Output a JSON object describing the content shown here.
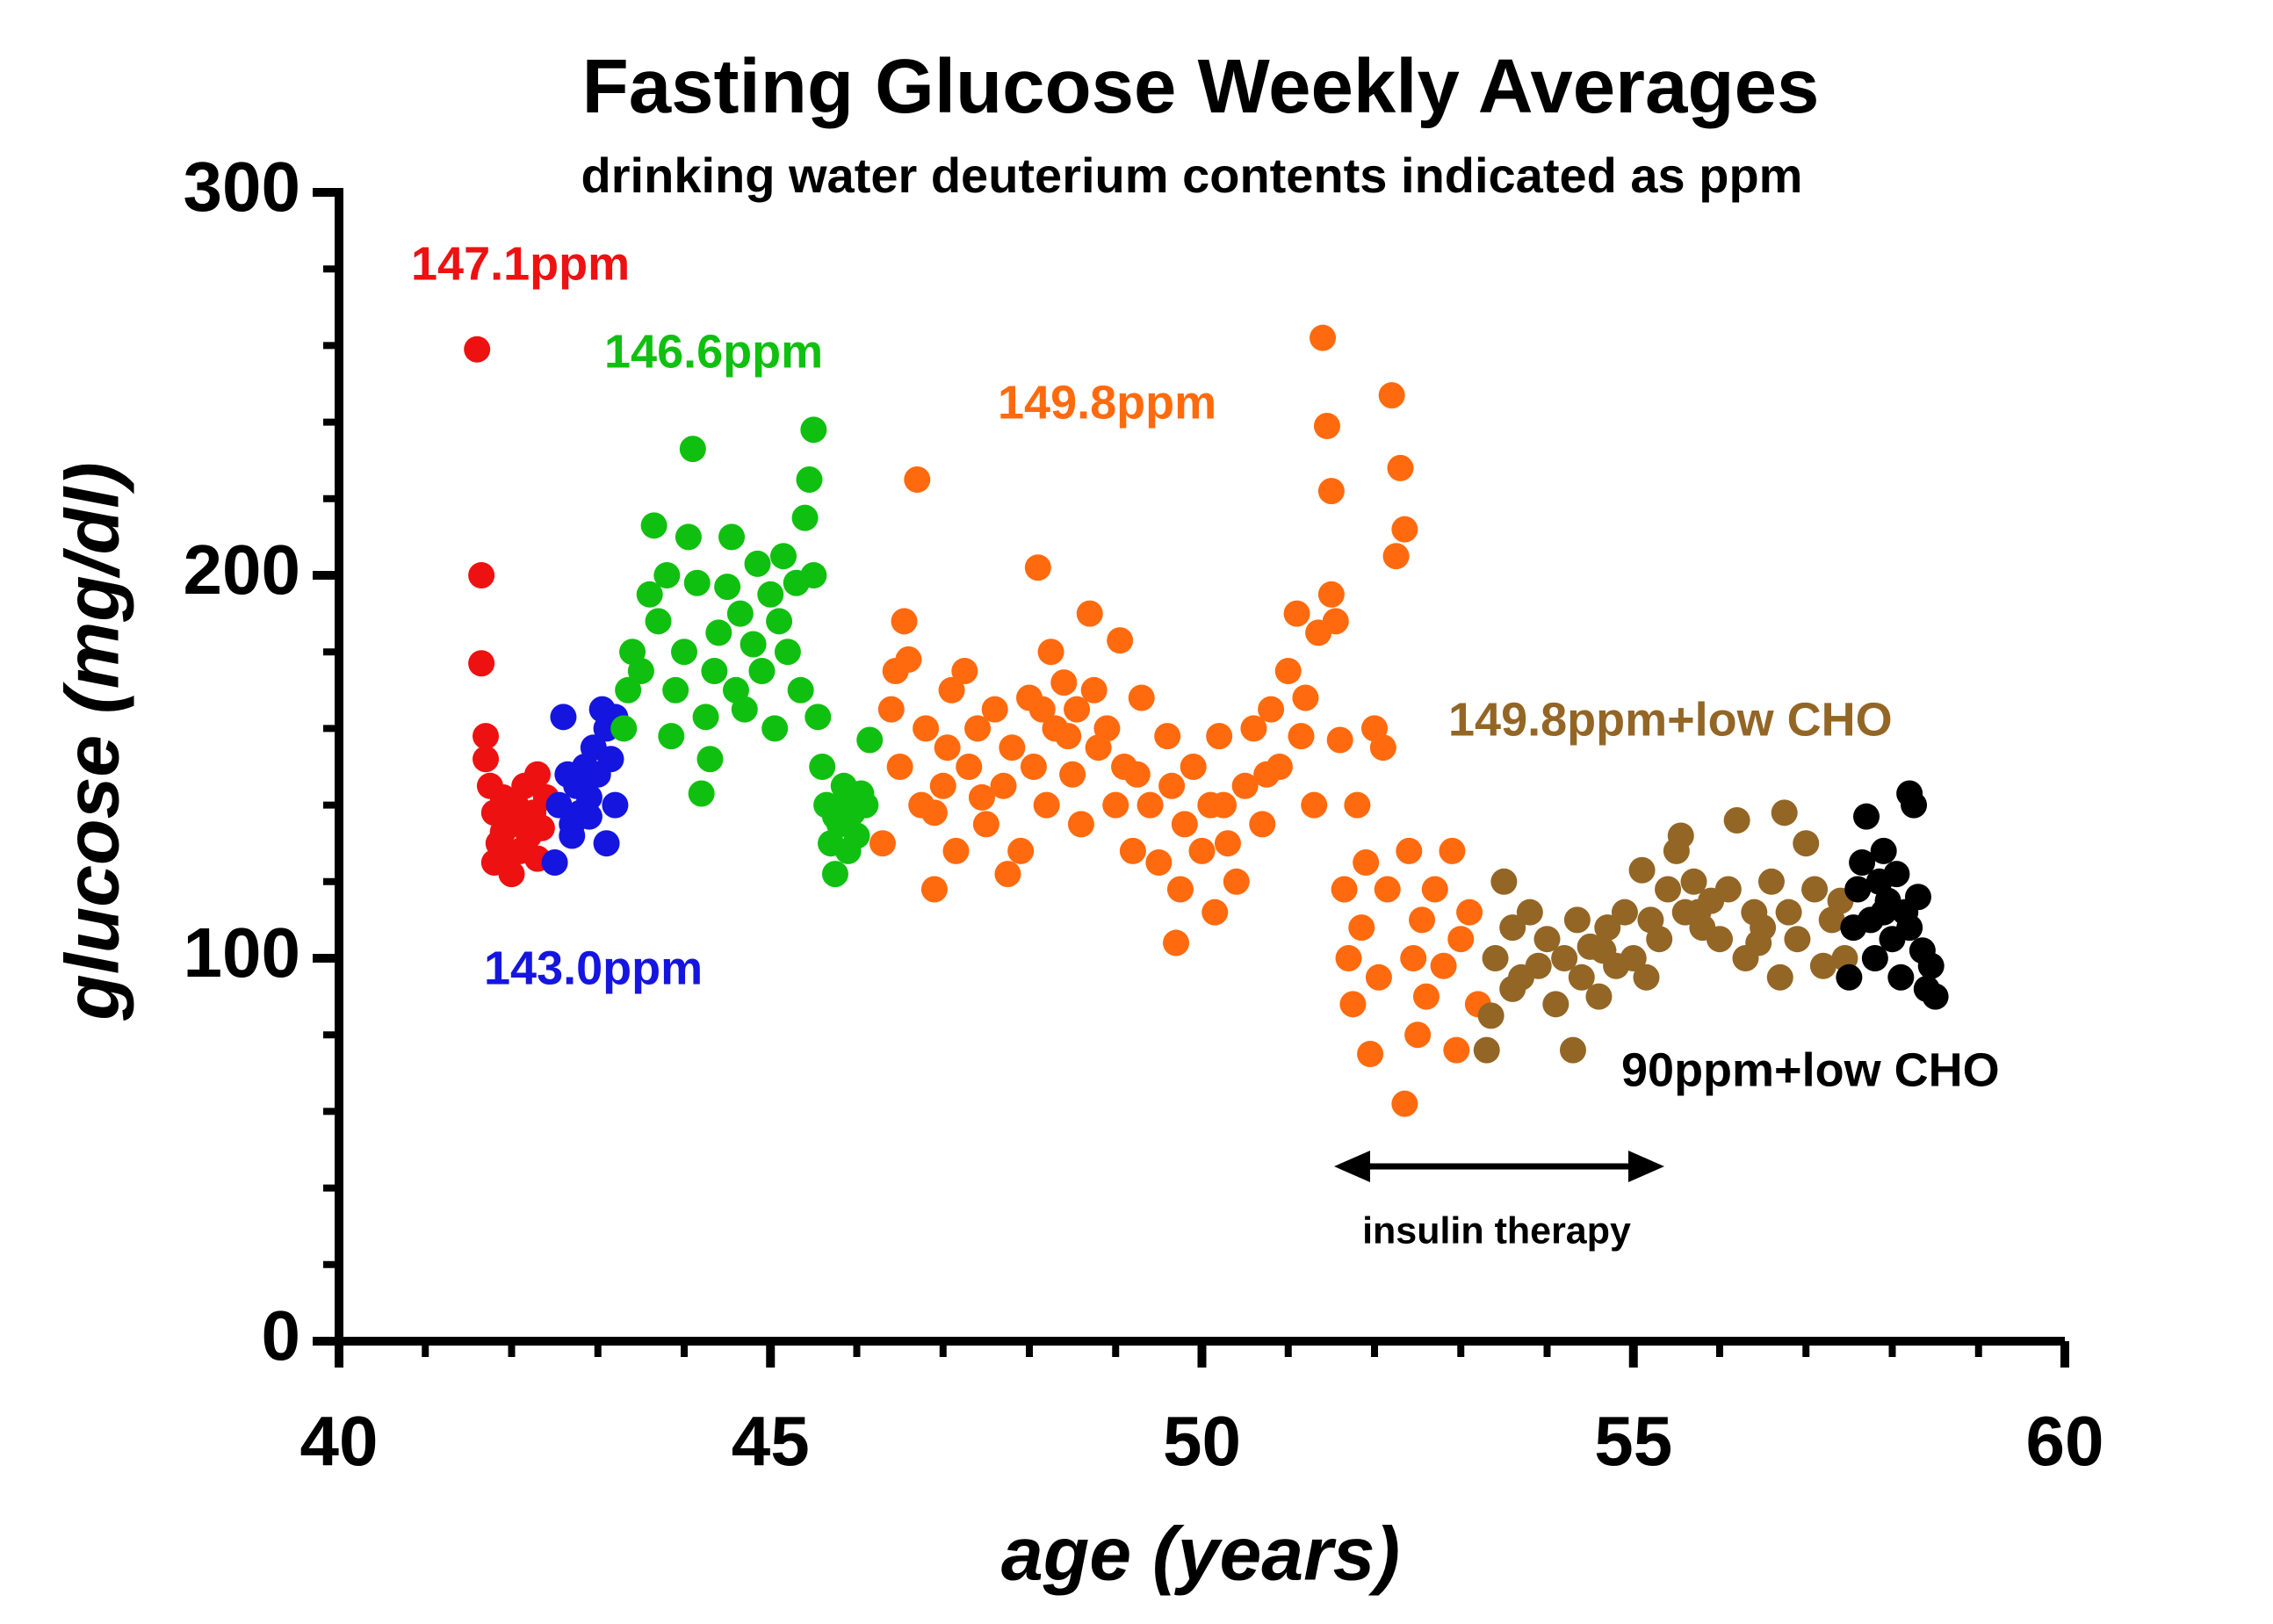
{
  "chart_data": {
    "type": "scatter",
    "title": "Fasting Glucose Weekly Averages",
    "subtitle": "drinking water deuterium contents indicated as ppm",
    "xlabel": "age (years)",
    "ylabel": "glucose (mg/dl)",
    "xlim": [
      40,
      60
    ],
    "ylim": [
      0,
      300
    ],
    "xticks": [
      40,
      45,
      50,
      55,
      60
    ],
    "yticks": [
      0,
      100,
      200,
      300
    ],
    "xminor_ticks": [
      41,
      42,
      43,
      44,
      46,
      47,
      48,
      49,
      51,
      52,
      53,
      54,
      56,
      57,
      58,
      59
    ],
    "yminor_ticks": [
      20,
      40,
      60,
      80,
      120,
      140,
      160,
      180,
      220,
      240,
      260,
      280
    ],
    "annotations": [
      "insulin therapy"
    ],
    "series": [
      {
        "name": "147.1ppm",
        "color": "#ee1111",
        "x": [
          41.6,
          41.65,
          41.65,
          41.7,
          41.7,
          41.75,
          41.8,
          41.85,
          41.9,
          41.95,
          42.0,
          42.0,
          42.05,
          42.1,
          42.15,
          42.2,
          42.25,
          42.3,
          42.3,
          42.35,
          42.4,
          41.8,
          42.1,
          41.9
        ],
        "values": [
          259,
          200,
          177,
          158,
          152,
          145,
          138,
          130,
          142,
          125,
          135,
          122,
          140,
          128,
          145,
          132,
          138,
          126,
          148,
          134,
          142,
          125,
          136,
          133
        ]
      },
      {
        "name": "143.0ppm",
        "color": "#1515e0",
        "x": [
          42.5,
          42.55,
          42.6,
          42.65,
          42.7,
          42.75,
          42.8,
          42.85,
          42.9,
          42.95,
          43.0,
          43.05,
          43.1,
          43.1,
          43.15,
          43.2,
          43.2,
          42.7,
          42.9
        ],
        "values": [
          125,
          140,
          163,
          148,
          135,
          145,
          138,
          150,
          142,
          155,
          148,
          165,
          160,
          130,
          152,
          163,
          140,
          132,
          137
        ]
      },
      {
        "name": "146.6ppm",
        "color": "#10c010",
        "x": [
          43.3,
          43.35,
          43.4,
          43.5,
          43.6,
          43.65,
          43.7,
          43.8,
          43.85,
          43.9,
          44.0,
          44.05,
          44.1,
          44.15,
          44.2,
          44.25,
          44.3,
          44.35,
          44.4,
          44.5,
          44.55,
          44.6,
          44.65,
          44.7,
          44.8,
          44.85,
          44.9,
          45.0,
          45.05,
          45.1,
          45.15,
          45.2,
          45.3,
          45.35,
          45.4,
          45.45,
          45.5,
          45.5,
          45.55,
          45.6,
          45.65,
          45.7,
          45.75,
          45.8,
          45.85,
          45.9,
          45.95,
          46.0,
          46.05,
          46.1,
          46.15,
          45.75,
          45.9
        ],
        "values": [
          160,
          170,
          180,
          175,
          195,
          213,
          188,
          200,
          158,
          170,
          180,
          210,
          233,
          198,
          143,
          163,
          152,
          175,
          185,
          197,
          210,
          170,
          190,
          165,
          182,
          203,
          175,
          195,
          160,
          188,
          205,
          180,
          198,
          170,
          215,
          225,
          238,
          200,
          163,
          150,
          140,
          130,
          122,
          135,
          145,
          128,
          138,
          132,
          143,
          140,
          157,
          137,
          142
        ]
      },
      {
        "name": "149.8ppm",
        "color": "#ff6a0e",
        "x": [
          46.3,
          46.4,
          46.5,
          46.55,
          46.6,
          46.7,
          46.75,
          46.8,
          46.9,
          47.0,
          47.1,
          47.15,
          47.25,
          47.3,
          47.4,
          47.5,
          47.6,
          47.7,
          47.75,
          47.8,
          47.9,
          48.0,
          48.05,
          48.1,
          48.2,
          48.25,
          48.3,
          48.4,
          48.5,
          48.55,
          48.6,
          48.7,
          48.75,
          48.8,
          48.9,
          49.0,
          49.05,
          49.1,
          49.2,
          49.3,
          49.4,
          49.5,
          49.6,
          49.65,
          49.7,
          49.75,
          49.8,
          49.9,
          50.0,
          50.1,
          50.15,
          50.2,
          50.3,
          50.4,
          50.5,
          50.6,
          50.7,
          50.8,
          50.9,
          51.0,
          51.1,
          51.15,
          51.2,
          51.3,
          51.35,
          51.4,
          51.45,
          51.5,
          51.5,
          51.55,
          51.6,
          51.65,
          51.7,
          51.75,
          51.8,
          51.85,
          51.9,
          51.95,
          52.0,
          52.05,
          52.1,
          52.15,
          52.2,
          52.25,
          52.3,
          52.35,
          52.35,
          52.4,
          52.45,
          52.5,
          52.55,
          52.6,
          52.7,
          52.8,
          52.9,
          52.95,
          53.0,
          53.1,
          53.2,
          47.05,
          47.45,
          48.15,
          48.45,
          49.25,
          50.25,
          50.75,
          46.45,
          46.9
        ],
        "values": [
          130,
          165,
          150,
          188,
          178,
          225,
          140,
          160,
          118,
          145,
          170,
          128,
          175,
          150,
          160,
          135,
          165,
          145,
          122,
          155,
          128,
          168,
          150,
          202,
          140,
          180,
          160,
          172,
          148,
          165,
          135,
          190,
          170,
          155,
          160,
          140,
          183,
          150,
          128,
          168,
          140,
          125,
          158,
          145,
          104,
          118,
          135,
          150,
          128,
          140,
          112,
          158,
          130,
          120,
          145,
          160,
          135,
          165,
          150,
          175,
          190,
          158,
          168,
          140,
          185,
          262,
          239,
          222,
          195,
          188,
          157,
          118,
          100,
          88,
          140,
          108,
          125,
          75,
          160,
          95,
          155,
          118,
          247,
          205,
          228,
          212,
          62,
          128,
          100,
          80,
          110,
          90,
          118,
          98,
          128,
          76,
          105,
          112,
          88,
          155,
          142,
          165,
          158,
          148,
          140,
          148,
          175,
          138
        ]
      },
      {
        "name": "149.8ppm+low CHO",
        "color": "#936626",
        "x": [
          53.3,
          53.35,
          53.4,
          53.5,
          53.6,
          53.7,
          53.8,
          53.9,
          54.0,
          54.1,
          54.2,
          54.3,
          54.35,
          54.4,
          54.5,
          54.6,
          54.7,
          54.8,
          54.9,
          55.0,
          55.1,
          55.15,
          55.2,
          55.3,
          55.4,
          55.5,
          55.55,
          55.6,
          55.7,
          55.8,
          55.9,
          56.0,
          56.1,
          56.2,
          56.3,
          56.4,
          56.5,
          56.6,
          56.7,
          56.75,
          56.8,
          56.9,
          57.0,
          57.1,
          57.2,
          57.3,
          57.4,
          57.45,
          53.6,
          54.65,
          55.75,
          56.45
        ],
        "values": [
          76,
          85,
          100,
          120,
          108,
          95,
          112,
          98,
          105,
          88,
          100,
          76,
          110,
          95,
          103,
          90,
          108,
          98,
          112,
          100,
          123,
          95,
          110,
          105,
          118,
          128,
          132,
          112,
          120,
          108,
          115,
          105,
          118,
          136,
          100,
          112,
          108,
          120,
          95,
          138,
          112,
          105,
          130,
          118,
          98,
          110,
          115,
          100,
          92,
          102,
          112,
          104
        ]
      },
      {
        "name": "90ppm+low CHO",
        "color": "#000000",
        "x": [
          57.5,
          57.55,
          57.6,
          57.65,
          57.7,
          57.75,
          57.8,
          57.85,
          57.9,
          57.95,
          58.0,
          58.05,
          58.1,
          58.15,
          58.2,
          58.25,
          58.3,
          58.35,
          58.4,
          58.45,
          58.5,
          58.2,
          57.9
        ],
        "values": [
          95,
          108,
          118,
          125,
          137,
          110,
          100,
          120,
          128,
          115,
          105,
          122,
          95,
          112,
          143,
          140,
          116,
          102,
          92,
          98,
          90,
          108,
          112
        ]
      }
    ]
  }
}
